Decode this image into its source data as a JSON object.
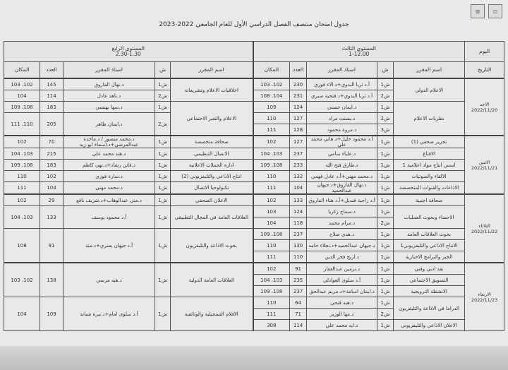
{
  "title": "جدول امتحان منتصف الفصل الدراسي الأول للعام الجامعي 2022-2023",
  "logos": [
    "شعار الجامعة",
    "شعار الكلية"
  ],
  "headers": {
    "day": "اليوم",
    "date": "التاريخ",
    "level3": {
      "name": "المستوى الثالث",
      "time": "1-12.00"
    },
    "level4": {
      "name": "المستوى الرابع",
      "time": "2.30-1.30"
    },
    "columns": {
      "course": "اسم المقرر",
      "section": "ش",
      "professor": "استاذ المقرر",
      "count": "العدد",
      "room": "المكان"
    }
  },
  "days": [
    {
      "day": "الاحد",
      "date": "2022/11/20",
      "level3": [
        {
          "course": "الاعلام الدولي",
          "sections": [
            {
              "section": "ش1",
              "professor": "أ.د ثريا البدوي+د.الاء فوزي",
              "count": "230",
              "room": "102، 103"
            },
            {
              "section": "ش2",
              "professor": "أ.د ثريا البدوي+د.فتحية صبري",
              "count": "231",
              "room": "104، 108"
            }
          ]
        },
        {
          "course": "نظريات الاعلام",
          "sections": [
            {
              "section": "ش1",
              "professor": "د.ايمان حسني",
              "count": "124",
              "room": "109"
            },
            {
              "section": "ش2",
              "professor": "د.بسنت مراد",
              "count": "127",
              "room": "110"
            },
            {
              "section": "ش3",
              "professor": "د.مروة محمود",
              "count": "128",
              "room": "111"
            }
          ]
        }
      ],
      "level4": [
        {
          "course": "اخلاقيات الاعلام وتشريعاته",
          "sections": [
            {
              "section": "ش1",
              "professor": "د.نهال الفاروق",
              "count": "145",
              "room": "102، 103"
            },
            {
              "section": "ش2",
              "professor": "د.ناهد عادل",
              "count": "114",
              "room": "104"
            }
          ]
        },
        {
          "course": "الاعلام والتغير الاجتماعي",
          "sections": [
            {
              "section": "ش1",
              "professor": "د.سها بهنسي",
              "count": "183",
              "room": "108، 109"
            },
            {
              "section": "ش2",
              "professor": "د.ايمان طاهر",
              "count": "205",
              "room": "110، 111"
            }
          ]
        }
      ]
    },
    {
      "day": "الاثنين",
      "date": "2022/11/21",
      "level3": [
        {
          "course": "تحرير صحفي (1)",
          "sections": [
            {
              "section": "ش1",
              "professor": "أ.د محمود خليل+د.هاني محمد علي",
              "count": "127",
              "room": "102"
            }
          ]
        },
        {
          "course": "الاقناع",
          "sections": [
            {
              "section": "ش1",
              "professor": "د.علياء سامي",
              "count": "237",
              "room": "103، 104"
            }
          ]
        },
        {
          "course": "اسس انتاج مواد اعلامية 1",
          "sections": [
            {
              "section": "ش1",
              "professor": "د.طارق فتح الله",
              "count": "233",
              "room": "108، 109"
            }
          ]
        },
        {
          "course": "الالقاء والصوتيات",
          "sections": [
            {
              "section": "ش1",
              "professor": "د.محمد مهني+أ.د عادل فهمي",
              "count": "132",
              "room": "110"
            }
          ]
        },
        {
          "course": "الاذاعات والقنوات المتخصصة",
          "sections": [
            {
              "section": "ش1",
              "professor": "د.نهال الفاروق+د.جيهان عبدالحميد",
              "count": "104",
              "room": "111"
            }
          ]
        }
      ],
      "level4": [
        {
          "course": "صحافة متخصصة",
          "sections": [
            {
              "section": "ش1",
              "professor": "د.محمد منصور / د.ماجدة عبدالمرضي+د.اسماء ابو زيد",
              "count": "70",
              "room": "102"
            }
          ]
        },
        {
          "course": "الاتصال التنظيمي",
          "sections": [
            {
              "section": "ش1",
              "professor": "د.هند محمد علي",
              "count": "215",
              "room": "103، 104"
            }
          ]
        },
        {
          "course": "ادارة الحملات الاعلانية",
          "sections": [
            {
              "section": "ش1",
              "professor": "د.فاتن رشاد+د.نهى كاظم",
              "count": "183",
              "room": "108، 109"
            }
          ]
        },
        {
          "course": "انتاج الاذاعي والتليفزيوني (2)",
          "sections": [
            {
              "section": "ش1",
              "professor": "د.سارة فوزي",
              "count": "102",
              "room": "110"
            }
          ]
        },
        {
          "course": "تكنولوجيا الاتصال",
          "sections": [
            {
              "section": "ش1",
              "professor": "د.محمد مهني",
              "count": "104",
              "room": "111"
            }
          ]
        }
      ]
    },
    {
      "day": "الثلاثاء",
      "date": "2022/11/22",
      "level3": [
        {
          "course": "صحافة اجنبية",
          "sections": [
            {
              "section": "ش1",
              "professor": "أ.د راجية قنديل+أ.د هناء الفاروق",
              "count": "133",
              "room": "102"
            }
          ]
        },
        {
          "course": "الاحصاء وبحوث العمليات",
          "sections": [
            {
              "section": "ش1",
              "professor": "د.سماح زكريا",
              "count": "124",
              "room": "103"
            },
            {
              "section": "ش2",
              "professor": "د.مرام محمد",
              "count": "118",
              "room": "104"
            }
          ]
        },
        {
          "course": "بحوث العلاقات العامة",
          "sections": [
            {
              "section": "ش1",
              "professor": "د.هدى صلاح",
              "count": "237",
              "room": "108، 109"
            }
          ]
        },
        {
          "course": "الانتاج الاذاعي والتليفزيوني1",
          "sections": [
            {
              "section": "ش1",
              "professor": "د.جيهان عبدالحميد+د.نجلاء حامد",
              "count": "130",
              "room": "110"
            }
          ]
        },
        {
          "course": "الخبر والبرامج الاخبارية",
          "sections": [
            {
              "section": "ش1",
              "professor": "د.اريج فخر الدين",
              "count": "110",
              "room": "111"
            }
          ]
        }
      ],
      "level4": [
        {
          "course": "الاعلان الصحفي",
          "sections": [
            {
              "section": "ش1",
              "professor": "د.مني عبدالوهاب+د.شريف نافع",
              "count": "29",
              "room": "102"
            }
          ]
        },
        {
          "course": "العلاقات العامة في المجال التطبيقي",
          "sections": [
            {
              "section": "ش1",
              "professor": "أ.د محمود يوسف",
              "count": "133",
              "room": "103، 104"
            }
          ]
        },
        {
          "course": "بحوث الاذاعة والتليفزيون",
          "sections": [
            {
              "section": "ش1",
              "professor": "أ.د جيهان يسري+د.منة",
              "count": "91",
              "room": "108"
            }
          ]
        }
      ]
    },
    {
      "day": "الاربعاء",
      "date": "2022/11/23",
      "level3": [
        {
          "course": "نقد ادبي وفني",
          "sections": [
            {
              "section": "ش1",
              "professor": "د.نرمين عبدالغفار",
              "count": "91",
              "room": "102"
            }
          ]
        },
        {
          "course": "التسويق الاجتماعي",
          "sections": [
            {
              "section": "ش1",
              "professor": "أ.د سلوى العوادلي",
              "count": "235",
              "room": "103، 104"
            }
          ]
        },
        {
          "course": "الانشطة الترويجية",
          "sections": [
            {
              "section": "ش1",
              "professor": "د.ايمان اسامة+د.مريم عبدالحق",
              "count": "237",
              "room": "108، 109"
            }
          ]
        },
        {
          "course": "الدراما في الاذاعة والتليفزيون",
          "sections": [
            {
              "section": "ش1",
              "professor": "د.هبه فتحي",
              "count": "64",
              "room": "110"
            },
            {
              "section": "ش2",
              "professor": "د.مها الوزير",
              "count": "71",
              "room": "111"
            }
          ]
        },
        {
          "course": "الاعلان الاذاعي والتليفزيوني",
          "sections": [
            {
              "section": "ش1",
              "professor": "د.ايه محمد علي",
              "count": "114",
              "room": "308"
            }
          ]
        }
      ],
      "level4": [
        {
          "course": "العلاقات العامة الدولية",
          "sections": [
            {
              "section": "ش1",
              "professor": "د.هبه مرسي",
              "count": "138",
              "room": "102، 103"
            }
          ]
        },
        {
          "course": "الافلام التسجيلية والوثائقية",
          "sections": [
            {
              "section": "ش1",
              "professor": "أ.د سلوى امام+د.نيرة شبانة",
              "count": "109",
              "room": "104"
            }
          ]
        }
      ]
    }
  ]
}
